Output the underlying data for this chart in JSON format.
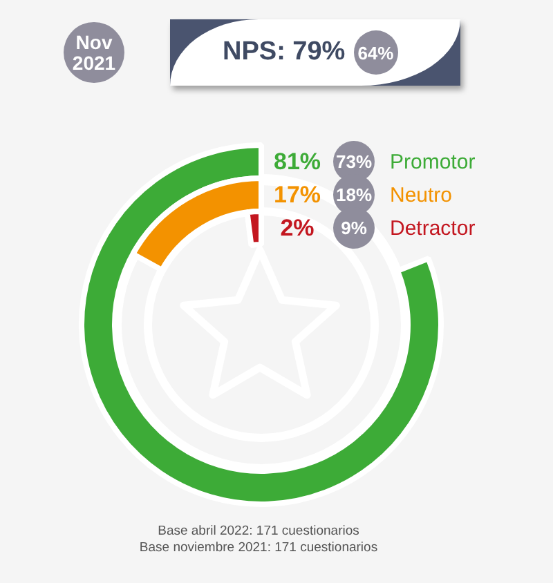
{
  "chart_data": {
    "type": "other",
    "title": "NPS: 79%",
    "categories": [
      "Promotor",
      "Neutro",
      "Detractor"
    ],
    "series": [
      {
        "values": [
          81,
          17,
          2
        ],
        "colors": [
          "#3dab37",
          "#f39200",
          "#c3161f"
        ],
        "value_labels": [
          "81%",
          "17%",
          "2%"
        ]
      },
      {
        "name": "Nov 2021",
        "type": "other",
        "color": "#8f8d9c",
        "values": [
          73,
          18,
          9
        ],
        "value_labels": [
          "73%",
          "18%",
          "9%"
        ]
      }
    ],
    "legend": "top left",
    "annotations": [
      "64%",
      "Base abril 2022: 171 cuestionarios",
      "Base noviembre 2021: 171 cuestionarios"
    ]
  }
}
